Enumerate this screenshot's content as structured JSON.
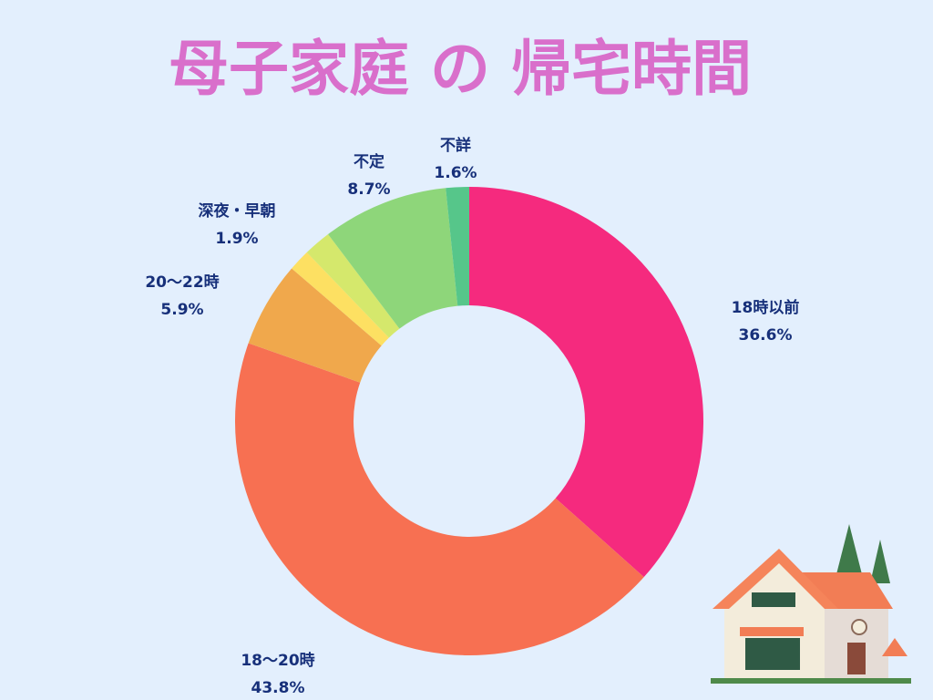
{
  "chart_data": {
    "type": "donut",
    "title": "母子家庭 の 帰宅時間",
    "categories": [
      "18時以前",
      "18〜20時",
      "20〜22時",
      null,
      "深夜・早朝",
      "不定",
      "不詳"
    ],
    "values": [
      36.6,
      43.8,
      5.9,
      1.5,
      1.9,
      8.7,
      1.6
    ],
    "value_labels": [
      "36.6%",
      "43.8%",
      "5.9%",
      null,
      "1.9%",
      "8.7%",
      "1.6%"
    ],
    "colors": [
      "#f52a7e",
      "#f77052",
      "#f0a84c",
      "#fde062",
      "#d5e86c",
      "#8ed67a",
      "#56c68a"
    ]
  }
}
